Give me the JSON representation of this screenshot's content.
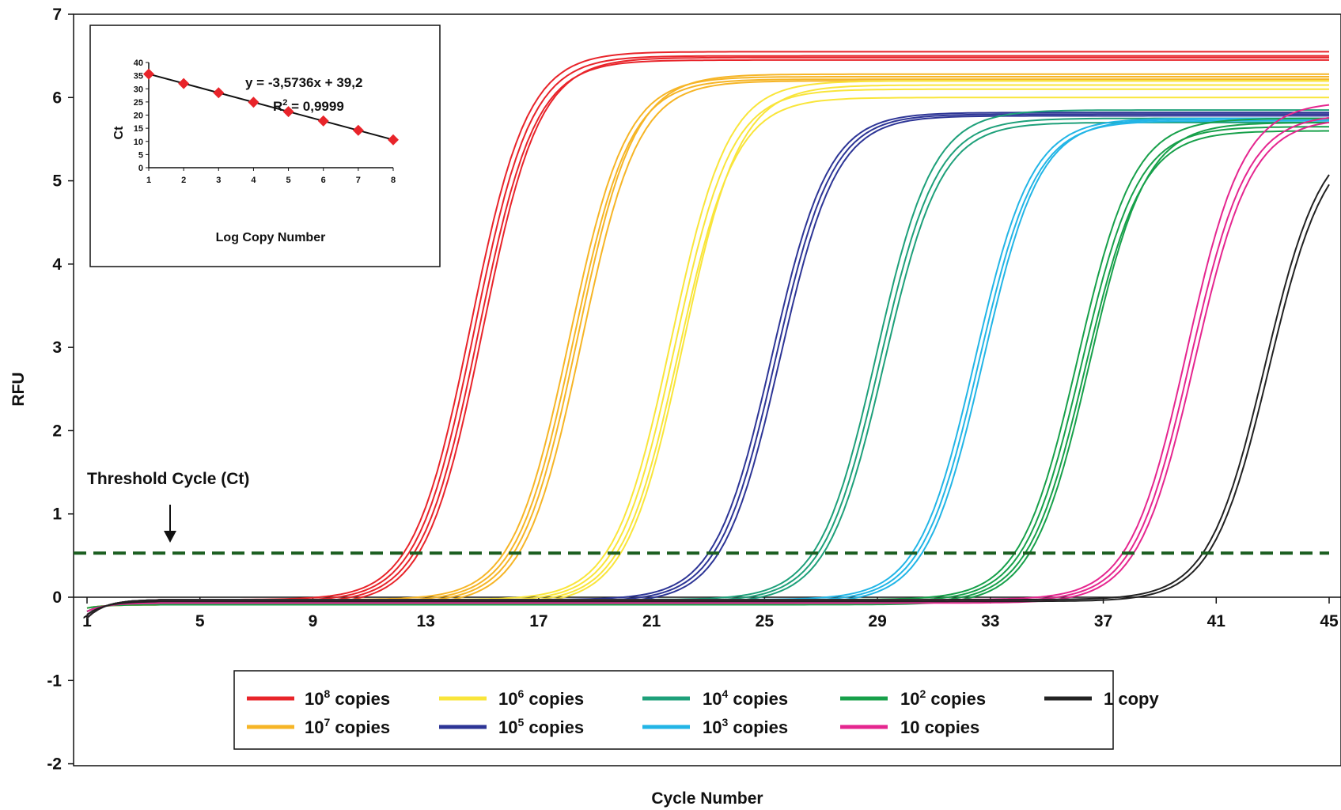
{
  "chart_data": [
    {
      "type": "line",
      "xlabel": "Cycle Number",
      "ylabel": "RFU",
      "xlim": [
        1,
        45
      ],
      "ylim": [
        -2,
        7
      ],
      "x_ticks": [
        1,
        5,
        9,
        13,
        17,
        21,
        25,
        29,
        33,
        37,
        41,
        45
      ],
      "y_ticks": [
        -2,
        -1,
        0,
        1,
        2,
        3,
        4,
        5,
        6,
        7
      ],
      "grid": false,
      "threshold": {
        "y": 0.53,
        "label": "Threshold Cycle (Ct)",
        "color": "#1b5e20",
        "style": "dashed"
      },
      "legend": {
        "position": "bottom",
        "entries": [
          {
            "text": "10",
            "sup": "8",
            "suffix": " copies",
            "color": "#e8242a"
          },
          {
            "text": "10",
            "sup": "7",
            "suffix": " copies",
            "color": "#f6b526"
          },
          {
            "text": "10",
            "sup": "6",
            "suffix": " copies",
            "color": "#f9e53a"
          },
          {
            "text": "10",
            "sup": "5",
            "suffix": " copies",
            "color": "#2d3596"
          },
          {
            "text": "10",
            "sup": "4",
            "suffix": " copies",
            "color": "#1ea07a"
          },
          {
            "text": "10",
            "sup": "3",
            "suffix": " copies",
            "color": "#22b5e6"
          },
          {
            "text": "10",
            "sup": "2",
            "suffix": " copies",
            "color": "#17a04a"
          },
          {
            "text": "10 copies",
            "sup": "",
            "suffix": "",
            "color": "#e5268f"
          },
          {
            "text": "1 copy",
            "sup": "",
            "suffix": "",
            "color": "#222222"
          }
        ]
      },
      "series": [
        {
          "name": "10^8 copies",
          "color": "#e8242a",
          "midpoint": 14.8,
          "slope": 1.0,
          "plateaus": [
            6.55,
            6.5,
            6.45,
            6.48
          ]
        },
        {
          "name": "10^7 copies",
          "color": "#f6b526",
          "midpoint": 18.3,
          "slope": 1.0,
          "plateaus": [
            6.25,
            6.22,
            6.28,
            6.2
          ]
        },
        {
          "name": "10^6 copies",
          "color": "#f9e53a",
          "midpoint": 21.9,
          "slope": 1.0,
          "plateaus": [
            6.2,
            6.1,
            6.0,
            6.15
          ]
        },
        {
          "name": "10^5 copies",
          "color": "#2d3596",
          "midpoint": 25.4,
          "slope": 1.0,
          "plateaus": [
            5.82,
            5.8,
            5.78
          ]
        },
        {
          "name": "10^4 copies",
          "color": "#1ea07a",
          "midpoint": 29.1,
          "slope": 1.0,
          "plateaus": [
            5.85,
            5.75,
            5.7
          ]
        },
        {
          "name": "10^3 copies",
          "color": "#22b5e6",
          "midpoint": 32.6,
          "slope": 1.0,
          "plateaus": [
            5.75,
            5.72,
            5.74
          ]
        },
        {
          "name": "10^2 copies",
          "color": "#17a04a",
          "midpoint": 36.3,
          "slope": 1.0,
          "plateaus": [
            5.75,
            5.65,
            5.6,
            5.7
          ]
        },
        {
          "name": "10 copies",
          "color": "#e5268f",
          "midpoint": 40.1,
          "slope": 1.0,
          "plateaus": [
            5.95,
            5.8,
            5.75
          ]
        },
        {
          "name": "1 copy",
          "color": "#222222",
          "midpoint": 42.8,
          "slope": 1.0,
          "plateaus": [
            5.6,
            5.55
          ]
        }
      ]
    },
    {
      "type": "scatter",
      "xlabel": "Log Copy Number",
      "ylabel": "Ct",
      "xlim": [
        1,
        8
      ],
      "ylim": [
        0,
        40
      ],
      "x_ticks": [
        1,
        2,
        3,
        4,
        5,
        6,
        7,
        8
      ],
      "y_ticks": [
        0,
        5,
        10,
        15,
        20,
        25,
        30,
        35,
        40
      ],
      "x": [
        1,
        2,
        3,
        4,
        5,
        6,
        7,
        8
      ],
      "y": [
        35.6,
        32.0,
        28.5,
        24.9,
        21.3,
        17.8,
        14.2,
        10.6
      ],
      "marker_color": "#e8242a",
      "trendline": {
        "slope": -3.5736,
        "intercept": 39.2
      },
      "equation": "y = -3,5736x + 39,2",
      "r2_label": "R",
      "r2_sup": "2",
      "r2_value": " = 0,9999"
    }
  ]
}
